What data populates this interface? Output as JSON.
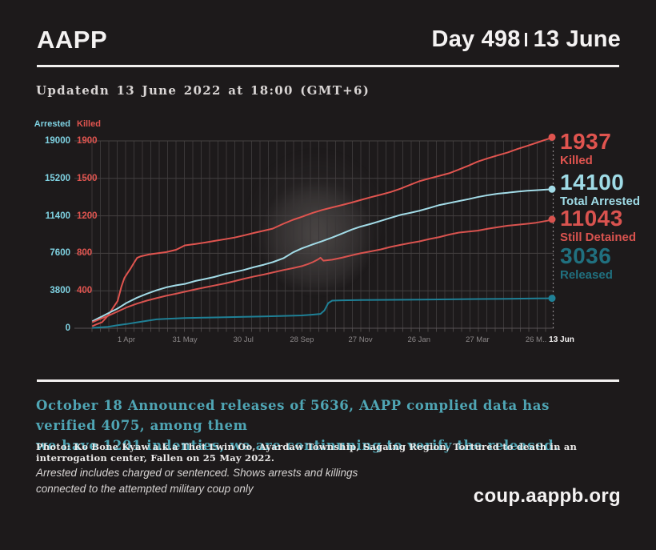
{
  "header": {
    "app": "AAPP",
    "day_label": "Day 498",
    "date_label": "13 June"
  },
  "updated_line": "Updatedn 13 June 2022 at 18:00 (GMT+6)",
  "chart_data": {
    "type": "line",
    "left_axis_title": "Arrested",
    "right_axis_title": "Killed",
    "left_axis_ticks": [
      19000,
      15200,
      11400,
      7600,
      3800,
      0
    ],
    "right_axis_ticks": [
      1900,
      1500,
      1200,
      800,
      400
    ],
    "left_axis_range": [
      0,
      19000
    ],
    "right_axis_range": [
      0,
      1900
    ],
    "grid": true,
    "x_ticks": [
      {
        "day": 59,
        "label": "1 Apr",
        "emph": false
      },
      {
        "day": 119,
        "label": "31 May",
        "emph": false
      },
      {
        "day": 179,
        "label": "30 Jul",
        "emph": false
      },
      {
        "day": 239,
        "label": "28 Sep",
        "emph": false
      },
      {
        "day": 299,
        "label": "27 Nov",
        "emph": false
      },
      {
        "day": 359,
        "label": "26 Jan",
        "emph": false
      },
      {
        "day": 419,
        "label": "27 Mar",
        "emph": false
      },
      {
        "day": 479,
        "label": "26 M..",
        "emph": false
      },
      {
        "day": 497,
        "label": "13 Jun",
        "emph": true
      }
    ],
    "series": [
      {
        "name": "Killed",
        "axis": "killed",
        "color": "#e0544f",
        "points": [
          [
            24,
            20
          ],
          [
            28,
            38
          ],
          [
            34,
            61
          ],
          [
            40,
            126
          ],
          [
            46,
            217
          ],
          [
            50,
            275
          ],
          [
            54,
            423
          ],
          [
            57,
            510
          ],
          [
            60,
            557
          ],
          [
            63,
            600
          ],
          [
            66,
            650
          ],
          [
            70,
            714
          ],
          [
            74,
            730
          ],
          [
            78,
            739
          ],
          [
            82,
            748
          ],
          [
            90,
            759
          ],
          [
            100,
            772
          ],
          [
            110,
            796
          ],
          [
            119,
            840
          ],
          [
            130,
            855
          ],
          [
            140,
            870
          ],
          [
            149,
            885
          ],
          [
            160,
            903
          ],
          [
            170,
            920
          ],
          [
            179,
            940
          ],
          [
            190,
            967
          ],
          [
            200,
            990
          ],
          [
            209,
            1010
          ],
          [
            220,
            1060
          ],
          [
            230,
            1100
          ],
          [
            239,
            1130
          ],
          [
            250,
            1170
          ],
          [
            260,
            1200
          ],
          [
            270,
            1225
          ],
          [
            280,
            1250
          ],
          [
            290,
            1275
          ],
          [
            299,
            1300
          ],
          [
            310,
            1330
          ],
          [
            320,
            1355
          ],
          [
            330,
            1382
          ],
          [
            340,
            1415
          ],
          [
            350,
            1455
          ],
          [
            359,
            1490
          ],
          [
            370,
            1520
          ],
          [
            380,
            1546
          ],
          [
            390,
            1572
          ],
          [
            400,
            1610
          ],
          [
            410,
            1650
          ],
          [
            419,
            1690
          ],
          [
            430,
            1725
          ],
          [
            440,
            1755
          ],
          [
            450,
            1783
          ],
          [
            460,
            1818
          ],
          [
            470,
            1850
          ],
          [
            479,
            1880
          ],
          [
            488,
            1910
          ],
          [
            497,
            1937
          ]
        ]
      },
      {
        "name": "Total Arrested",
        "axis": "arrested",
        "color": "#a3dce8",
        "points": [
          [
            24,
            700
          ],
          [
            30,
            1000
          ],
          [
            40,
            1500
          ],
          [
            50,
            2000
          ],
          [
            59,
            2560
          ],
          [
            70,
            3100
          ],
          [
            80,
            3500
          ],
          [
            90,
            3850
          ],
          [
            100,
            4150
          ],
          [
            110,
            4350
          ],
          [
            119,
            4500
          ],
          [
            130,
            4800
          ],
          [
            140,
            5000
          ],
          [
            149,
            5200
          ],
          [
            160,
            5500
          ],
          [
            170,
            5700
          ],
          [
            179,
            5900
          ],
          [
            190,
            6200
          ],
          [
            200,
            6450
          ],
          [
            209,
            6700
          ],
          [
            220,
            7100
          ],
          [
            230,
            7700
          ],
          [
            239,
            8100
          ],
          [
            250,
            8500
          ],
          [
            259,
            8800
          ],
          [
            270,
            9200
          ],
          [
            280,
            9600
          ],
          [
            290,
            10000
          ],
          [
            299,
            10300
          ],
          [
            310,
            10600
          ],
          [
            320,
            10900
          ],
          [
            330,
            11200
          ],
          [
            340,
            11500
          ],
          [
            350,
            11700
          ],
          [
            359,
            11900
          ],
          [
            370,
            12200
          ],
          [
            380,
            12500
          ],
          [
            390,
            12700
          ],
          [
            400,
            12900
          ],
          [
            410,
            13100
          ],
          [
            419,
            13300
          ],
          [
            430,
            13500
          ],
          [
            440,
            13650
          ],
          [
            450,
            13750
          ],
          [
            460,
            13850
          ],
          [
            470,
            13950
          ],
          [
            479,
            14000
          ],
          [
            490,
            14060
          ],
          [
            497,
            14100
          ]
        ]
      },
      {
        "name": "Still Detained",
        "axis": "arrested",
        "color": "#d9534f",
        "points": [
          [
            24,
            600
          ],
          [
            30,
            850
          ],
          [
            40,
            1250
          ],
          [
            50,
            1700
          ],
          [
            59,
            2100
          ],
          [
            70,
            2500
          ],
          [
            80,
            2800
          ],
          [
            90,
            3050
          ],
          [
            100,
            3300
          ],
          [
            110,
            3500
          ],
          [
            119,
            3700
          ],
          [
            130,
            3950
          ],
          [
            140,
            4150
          ],
          [
            149,
            4330
          ],
          [
            160,
            4550
          ],
          [
            170,
            4780
          ],
          [
            179,
            5000
          ],
          [
            190,
            5250
          ],
          [
            200,
            5450
          ],
          [
            209,
            5650
          ],
          [
            220,
            5900
          ],
          [
            230,
            6100
          ],
          [
            239,
            6300
          ],
          [
            245,
            6500
          ],
          [
            250,
            6700
          ],
          [
            255,
            6950
          ],
          [
            258,
            7150
          ],
          [
            261,
            6850
          ],
          [
            270,
            6950
          ],
          [
            280,
            7150
          ],
          [
            290,
            7400
          ],
          [
            299,
            7600
          ],
          [
            310,
            7800
          ],
          [
            320,
            8000
          ],
          [
            330,
            8250
          ],
          [
            340,
            8450
          ],
          [
            350,
            8650
          ],
          [
            359,
            8800
          ],
          [
            370,
            9050
          ],
          [
            380,
            9250
          ],
          [
            390,
            9500
          ],
          [
            400,
            9700
          ],
          [
            410,
            9800
          ],
          [
            419,
            9900
          ],
          [
            430,
            10100
          ],
          [
            440,
            10250
          ],
          [
            450,
            10400
          ],
          [
            460,
            10500
          ],
          [
            470,
            10600
          ],
          [
            479,
            10700
          ],
          [
            490,
            10900
          ],
          [
            497,
            11043
          ]
        ]
      },
      {
        "name": "Released",
        "axis": "arrested",
        "color": "#1f8096",
        "points": [
          [
            24,
            30
          ],
          [
            40,
            150
          ],
          [
            50,
            300
          ],
          [
            59,
            420
          ],
          [
            70,
            600
          ],
          [
            80,
            750
          ],
          [
            90,
            900
          ],
          [
            100,
            960
          ],
          [
            110,
            1000
          ],
          [
            119,
            1030
          ],
          [
            140,
            1080
          ],
          [
            160,
            1120
          ],
          [
            179,
            1150
          ],
          [
            200,
            1200
          ],
          [
            220,
            1250
          ],
          [
            239,
            1300
          ],
          [
            250,
            1380
          ],
          [
            258,
            1450
          ],
          [
            262,
            1800
          ],
          [
            266,
            2550
          ],
          [
            270,
            2800
          ],
          [
            280,
            2830
          ],
          [
            300,
            2860
          ],
          [
            330,
            2880
          ],
          [
            360,
            2900
          ],
          [
            390,
            2930
          ],
          [
            420,
            2960
          ],
          [
            450,
            2990
          ],
          [
            479,
            3020
          ],
          [
            497,
            3036
          ]
        ]
      }
    ],
    "end_labels": [
      {
        "value": "1937",
        "caption": "Killed",
        "color": "#e0544f"
      },
      {
        "value": "14100",
        "caption": "Total Arrested",
        "color": "#9fdbe6"
      },
      {
        "value": "11043",
        "caption": "Still Detained",
        "color": "#d9534f"
      },
      {
        "value": "3036",
        "caption": "Released",
        "color": "#20707f"
      }
    ]
  },
  "notes": {
    "october_line1": "October 18 Announced releases of 5636, AAPP complied data has verified 4075, among them",
    "october_line2": "we have 1201 indenties, we are continuning to verify the released.",
    "photo_caption": "Photo:  Ko Bone Kyaw a.k.a Thet Lwin Oo, Ayardaw Township, Sagaing Region, Tortured to death in an interrogation center, Fallen on 25 May 2022.",
    "disclaimer_line1": "Arrested includes charged or sentenced. Shows arrests and killings",
    "disclaimer_line2": "connected to the attempted military coup only",
    "website": "coup.aappb.org"
  },
  "colors": {
    "background": "#1d1a1b",
    "foreground": "#f4f2f2",
    "accent_red": "#e0544f",
    "accent_cyan_light": "#9fdbe6",
    "accent_teal_dark": "#20707f",
    "note_teal": "#4fa5b4",
    "grid": "#3a3637",
    "tick_text": "#8b8788"
  }
}
